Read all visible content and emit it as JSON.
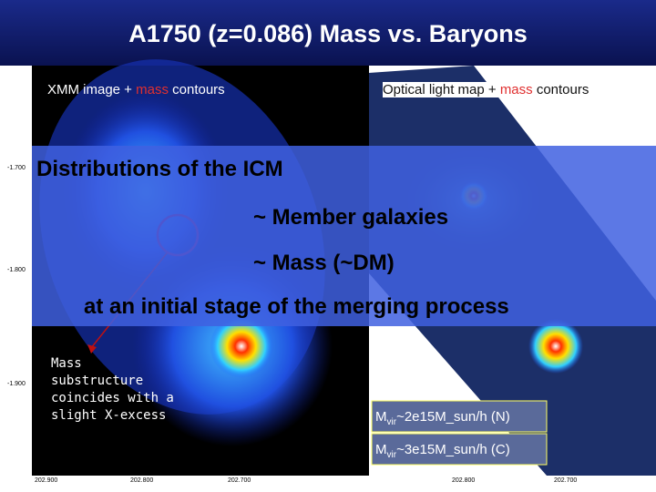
{
  "title": "A1750 (z=0.086) Mass vs. Baryons",
  "left_panel": {
    "caption": {
      "before": "XMM image + ",
      "highlight": "mass",
      "after": "  contours"
    },
    "y_labels": [
      "-1.700",
      "-1.800",
      "-1.900"
    ],
    "x_labels": [
      "202.900",
      "202.800",
      "202.700"
    ]
  },
  "right_panel": {
    "caption": {
      "before": "Optical light map + ",
      "highlight": "mass",
      "after": " contours"
    },
    "x_labels": [
      "202.800",
      "202.700"
    ]
  },
  "overlay": {
    "lines": [
      "Distributions of the ICM",
      "~ Member galaxies",
      "~ Mass (~DM)",
      "at an initial stage of the merging process"
    ]
  },
  "annotation": {
    "lines": [
      "Mass",
      "substructure",
      "coincides with a",
      "slight X-excess"
    ]
  },
  "mass_boxes": [
    {
      "symbol": "M",
      "subscript": "vir",
      "text": "~2e15M_sun/h (N)"
    },
    {
      "symbol": "M",
      "subscript": "vir",
      "text": "~3e15M_sun/h (C)"
    }
  ]
}
